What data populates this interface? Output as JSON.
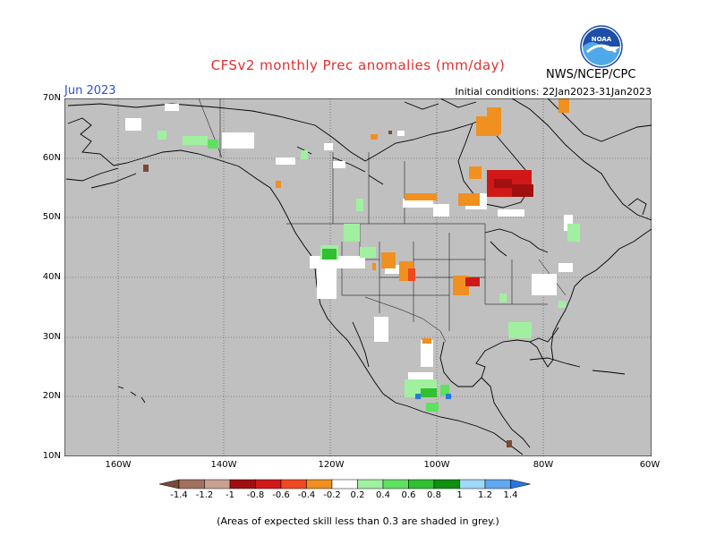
{
  "header": {
    "title": "CFSv2 monthly Prec anomalies (mm/day)",
    "month": "Jun 2023",
    "agency": "NWS/NCEP/CPC",
    "initial_conditions": "Initial conditions: 22Jan2023-31Jan2023",
    "logo_text": "NOAA"
  },
  "map": {
    "lat_labels": [
      "70N",
      "60N",
      "50N",
      "40N",
      "30N",
      "20N",
      "10N"
    ],
    "lon_labels": [
      "160W",
      "140W",
      "120W",
      "100W",
      "80W",
      "60W"
    ],
    "background_color": "#c0c0c0"
  },
  "colorbar": {
    "labels": [
      "-1.4",
      "-1.2",
      "-1",
      "-0.8",
      "-0.6",
      "-0.4",
      "-0.2",
      "0.2",
      "0.4",
      "0.6",
      "0.8",
      "1",
      "1.2",
      "1.4"
    ],
    "colors": [
      "#7a4a35",
      "#a07060",
      "#c8a090",
      "#a01010",
      "#d01818",
      "#f04820",
      "#f09020",
      "#ffffff",
      "#a0f0a0",
      "#60e060",
      "#30c030",
      "#109010",
      "#a0d8f8",
      "#60a8f0",
      "#2878e0"
    ]
  },
  "footnote": "(Areas of expected skill less than 0.3 are shaded in grey.)"
}
